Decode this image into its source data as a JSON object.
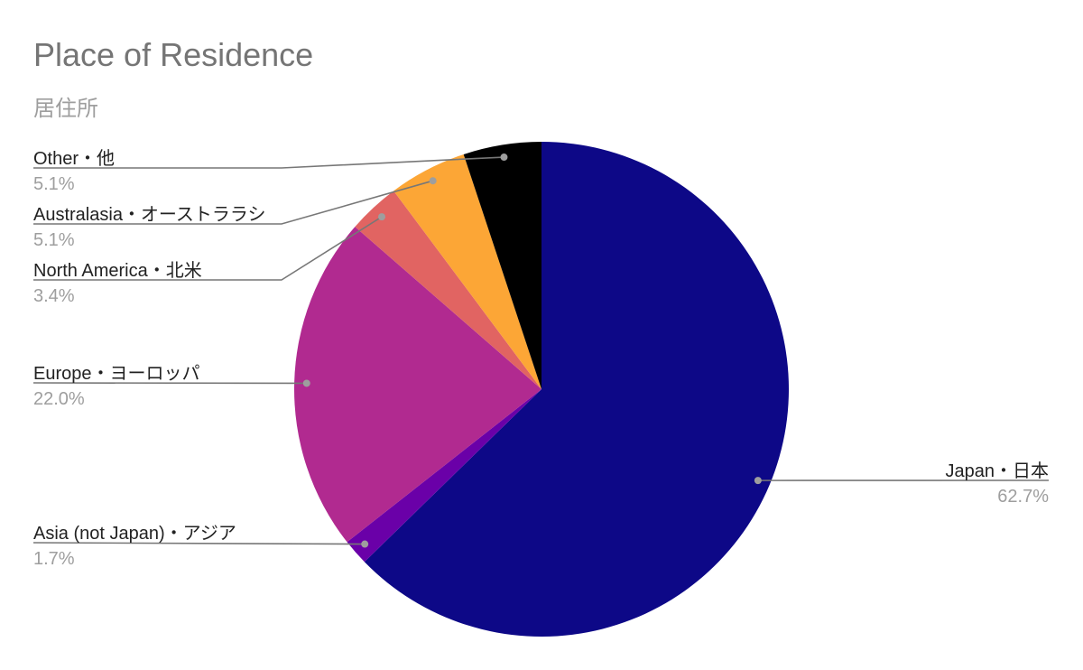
{
  "chart_data": {
    "type": "pie",
    "title": "Place of Residence",
    "subtitle": "居住所",
    "start_angle": "top, clockwise",
    "slices": [
      {
        "label": "Japan・日本",
        "value": 62.7,
        "pct_label": "62.7%",
        "color": "#0d0887"
      },
      {
        "label": "Asia (not Japan)・アジア",
        "value": 1.7,
        "pct_label": "1.7%",
        "color": "#6a00a8"
      },
      {
        "label": "Europe・ヨーロッパ",
        "value": 22.0,
        "pct_label": "22.0%",
        "color": "#b12a90"
      },
      {
        "label": "North America・北米",
        "value": 3.4,
        "pct_label": "3.4%",
        "color": "#e16462"
      },
      {
        "label": "Australasia・オーストララシ",
        "value": 5.1,
        "pct_label": "5.1%",
        "color": "#fca636"
      },
      {
        "label": "Other・他",
        "value": 5.1,
        "pct_label": "5.1%",
        "color": "#000000"
      }
    ]
  }
}
